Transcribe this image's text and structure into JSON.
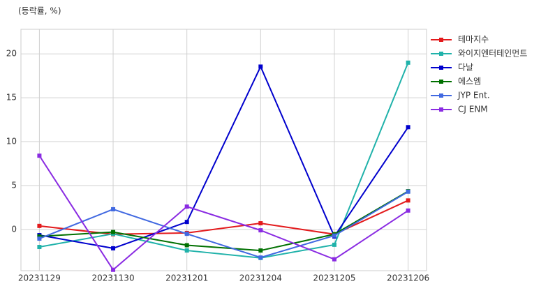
{
  "chart_data": {
    "type": "line",
    "ylabel": "(등락률, %)",
    "categories": [
      "20231129",
      "20231130",
      "20231201",
      "20231204",
      "20231205",
      "20231206"
    ],
    "series": [
      {
        "name": "테마지수",
        "color": "#e31a1c",
        "values": [
          0.4,
          -0.55,
          -0.4,
          0.7,
          -0.55,
          3.3
        ]
      },
      {
        "name": "와이지엔터테인먼트",
        "color": "#20b2aa",
        "values": [
          -2.0,
          -0.5,
          -2.4,
          -3.25,
          -1.75,
          19.0
        ]
      },
      {
        "name": "다날",
        "color": "#0000cd",
        "values": [
          -0.65,
          -2.15,
          0.85,
          18.55,
          -0.8,
          11.65
        ]
      },
      {
        "name": "에스엠",
        "color": "#007000",
        "values": [
          -0.8,
          -0.3,
          -1.8,
          -2.4,
          -0.55,
          4.35
        ]
      },
      {
        "name": "JYP Ent.",
        "color": "#4169e1",
        "values": [
          -1.05,
          2.3,
          -0.5,
          -3.2,
          -0.7,
          4.3
        ]
      },
      {
        "name": "CJ ENM",
        "color": "#8a2be2",
        "values": [
          8.4,
          -4.6,
          2.6,
          -0.1,
          -3.4,
          2.15
        ]
      }
    ],
    "ylim": [
      -4.7,
      22.8
    ],
    "yticks": [
      0,
      5,
      10,
      15,
      20
    ],
    "grid": true,
    "legend": "right"
  }
}
